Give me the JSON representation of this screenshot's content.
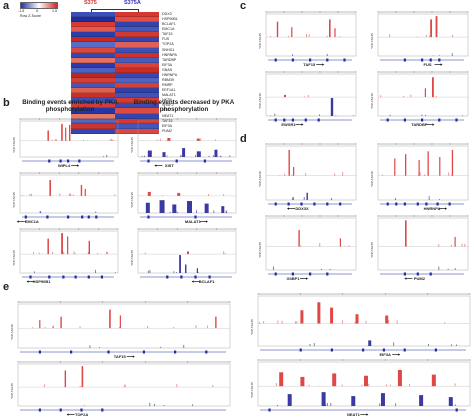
{
  "panels": {
    "a": "a",
    "b": "b",
    "c": "c",
    "d": "d",
    "e": "e"
  },
  "heatmap": {
    "col_labels": [
      "S375",
      "S375A"
    ],
    "legend_ticks": [
      "-1.5",
      "0",
      "1.5"
    ],
    "legend_title": "Row Z-Score",
    "genes": [
      "DDX3",
      "HSP90B1",
      "BCLAF1",
      "EMC1A",
      "TAF15",
      "FUS",
      "TOP2A",
      "SNHG1",
      "HNRNPA",
      "TARDBP",
      "EIF3A",
      "GNAS",
      "HNRNPU",
      "RBM39",
      "RMRP",
      "EEF1A1",
      "MALAT1",
      "NKTR",
      "SRSF2",
      "XIST",
      "NEAT1",
      "TAF15",
      "EIF3A",
      "PUM2"
    ],
    "left_col_colors": [
      "#3b4fb8",
      "#1f2f9a",
      "#d63a30",
      "#e05a50",
      "#2c3eaa",
      "#c42a22",
      "#5a6ac8",
      "#d84a40",
      "#3548b0",
      "#e87060",
      "#2a3aa8",
      "#5060c0",
      "#b82820",
      "#d04038",
      "#4555b8",
      "#e06050",
      "#c83028",
      "#3d4eb4",
      "#d43c32",
      "#2636a4",
      "#e27868",
      "#4a5abc",
      "#cc3630",
      "#3646b0"
    ],
    "right_col_colors": [
      "#d43830",
      "#e05048",
      "#3444aa",
      "#4858b8",
      "#d03a32",
      "#3545ac",
      "#e06058",
      "#3e4eb2",
      "#cc3228",
      "#4a5ab8",
      "#d84238",
      "#c42e26",
      "#3848ae",
      "#5262c0",
      "#d44036",
      "#3040a6",
      "#4252b4",
      "#d23c34",
      "#3a4aae",
      "#dc4a40",
      "#3444ac",
      "#d03830",
      "#4656b8",
      "#d84840"
    ]
  },
  "section_b": {
    "left_title": "Binding events enriched by PKA phosphorylation",
    "right_title": "Binding events decreased by PKA phosphorylation",
    "left_genes": [
      "WIPL4",
      "EMC1A",
      "HSP90B1"
    ],
    "right_genes": [
      "XIST",
      "MALAT1",
      "BCLAF1"
    ]
  },
  "section_c": {
    "genes": [
      "TAF15",
      "FUS",
      "EWSR1",
      "TARDBP"
    ]
  },
  "section_d": {
    "genes": [
      "DDX3X",
      "HNRNPA",
      "G3BP1",
      "PUM2"
    ]
  },
  "section_e": {
    "genes": [
      "TAF15",
      "TOP2A",
      "EIF3A",
      "NEAT1"
    ]
  },
  "track_label": "YFP-TAF15",
  "track_label2": "S375A",
  "colors": {
    "red": "#e04848",
    "blue": "#3a3aa0",
    "gene_blue": "#1f2fa0",
    "axis": "#888888"
  }
}
